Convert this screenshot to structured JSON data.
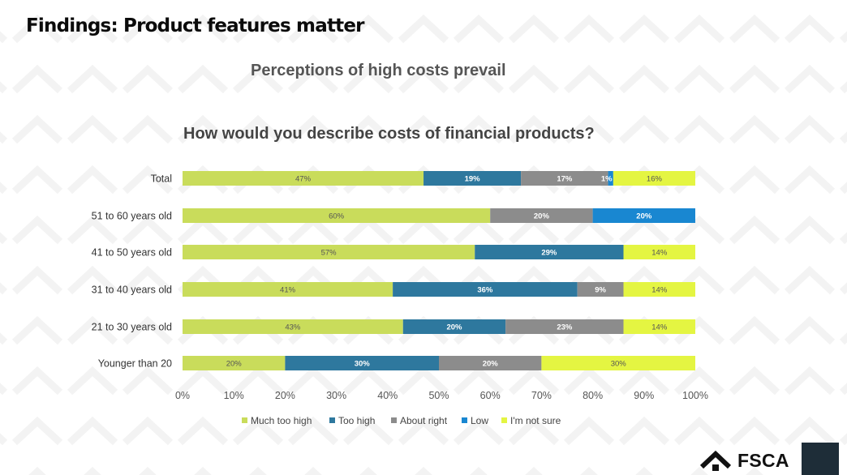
{
  "page": {
    "title": "Findings: Product features matter",
    "subtitle": "Perceptions of high costs prevail"
  },
  "logo": {
    "text": "FSCA",
    "icon": "house-roof-icon"
  },
  "chart_data": {
    "type": "bar",
    "orientation": "horizontal",
    "stacked": true,
    "title": "How would you describe costs of financial products?",
    "categories": [
      "Total",
      "51 to 60 years old",
      "41 to 50 years old",
      "31 to 40 years old",
      "21 to 30 years old",
      "Younger than 20"
    ],
    "xlim": [
      0,
      100
    ],
    "x_ticks": [
      "0%",
      "10%",
      "20%",
      "30%",
      "40%",
      "50%",
      "60%",
      "70%",
      "80%",
      "90%",
      "100%"
    ],
    "legend_position": "bottom",
    "series": [
      {
        "name": "Much too high",
        "color": "#c9dc5b",
        "values": [
          47,
          60,
          57,
          41,
          43,
          20
        ],
        "labels": [
          "47%",
          "60%",
          "57%",
          "41%",
          "43%",
          "20%"
        ],
        "label_color": "#555555"
      },
      {
        "name": "Too high",
        "color": "#2e789e",
        "values": [
          19,
          0,
          29,
          36,
          20,
          30
        ],
        "labels": [
          "19%",
          "",
          "29%",
          "36%",
          "20%",
          "30%"
        ],
        "label_color": "#ffffff"
      },
      {
        "name": "About right",
        "color": "#8c8c8c",
        "values": [
          17,
          20,
          0,
          9,
          23,
          20
        ],
        "labels": [
          "17%",
          "20%",
          "",
          "9%",
          "23%",
          "20%"
        ],
        "label_color": "#ffffff"
      },
      {
        "name": "Low",
        "color": "#1987d1",
        "values": [
          1,
          20,
          0,
          0,
          0,
          0
        ],
        "labels": [
          "1%",
          "20%",
          "",
          "",
          "",
          ""
        ],
        "label_color": "#ffffff"
      },
      {
        "name": "I'm not sure",
        "color": "#e4f542",
        "values": [
          16,
          0,
          14,
          14,
          14,
          30
        ],
        "labels": [
          "16%",
          "",
          "14%",
          "14%",
          "14%",
          "30%"
        ],
        "label_color": "#555555"
      }
    ]
  }
}
